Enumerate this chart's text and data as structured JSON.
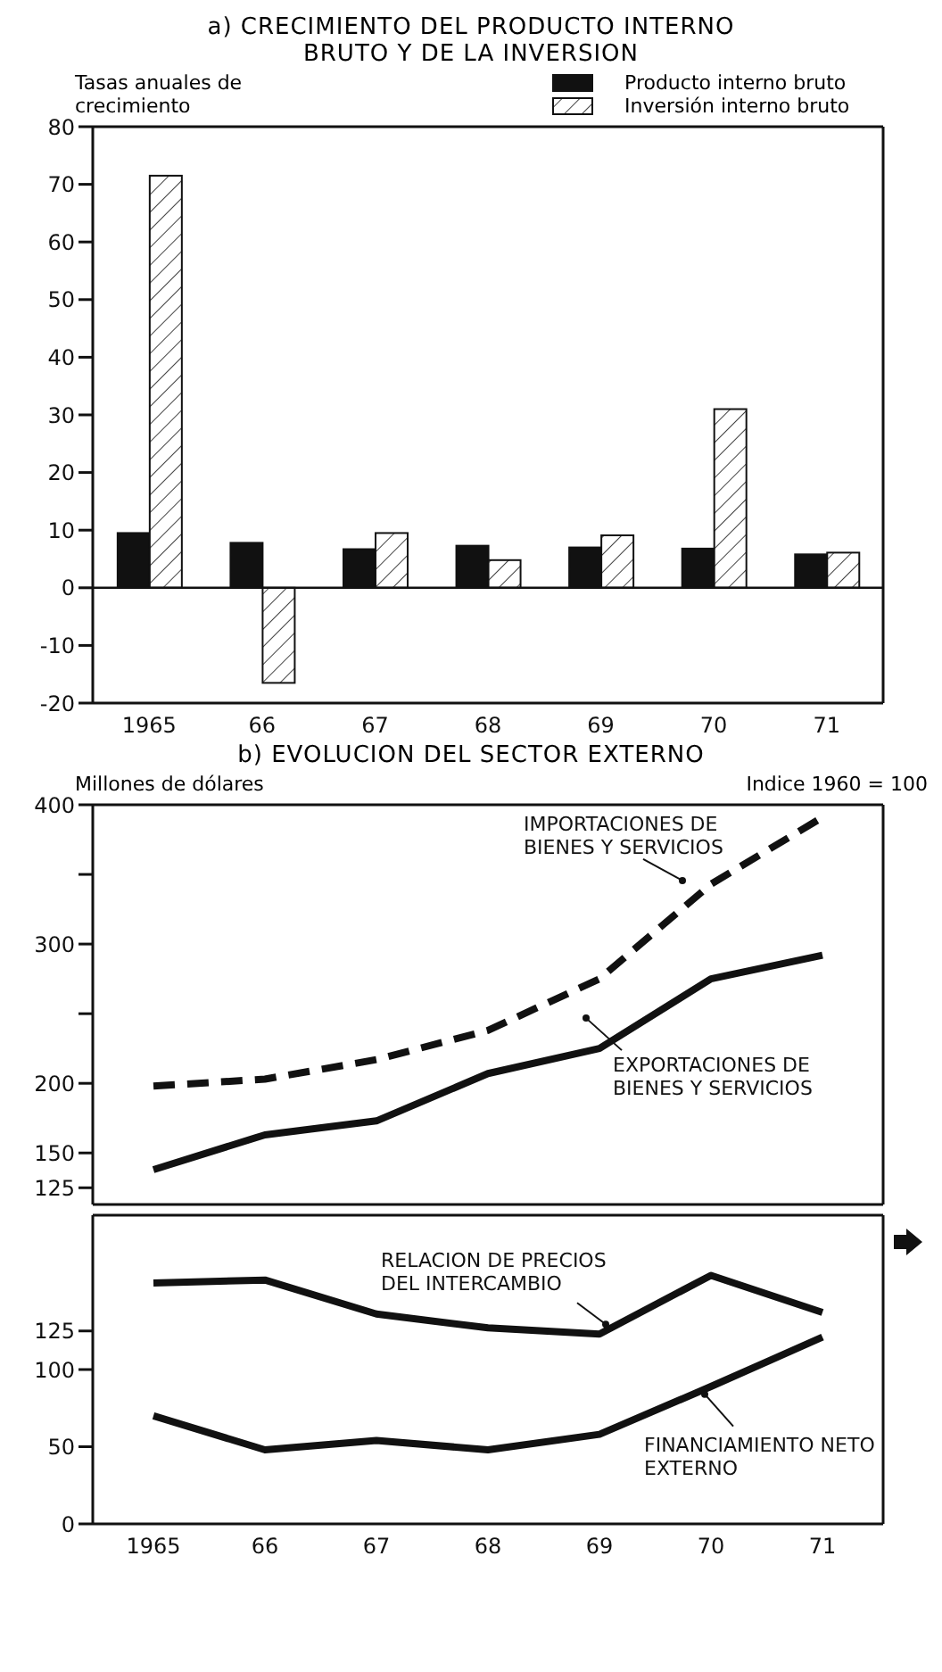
{
  "chart_data": [
    {
      "type": "bar",
      "title": "a) CRECIMIENTO DEL PRODUCTO INTERNO BRUTO Y DE LA INVERSION",
      "ylabel": "Tasas anuales de crecimiento",
      "categories": [
        "1965",
        "66",
        "67",
        "68",
        "69",
        "70",
        "71"
      ],
      "series": [
        {
          "name": "Producto interno bruto",
          "color": "#111111",
          "values": [
            9.5,
            7.8,
            6.7,
            7.3,
            7.0,
            6.8,
            5.8
          ]
        },
        {
          "name": "Inversión interno bruto",
          "color": "#ffffff",
          "values": [
            71.5,
            -16.5,
            9.5,
            4.8,
            9.1,
            31,
            6.1
          ]
        }
      ],
      "ylim": [
        -20,
        80
      ],
      "yticks": [
        -20,
        -10,
        0,
        10,
        20,
        30,
        40,
        50,
        60,
        70,
        80
      ],
      "legend": "top right"
    },
    {
      "type": "line",
      "title": "b) EVOLUCION DEL SECTOR EXTERNO",
      "ylabel": "Millones de dólares",
      "y2label": "Indice 1960 = 100",
      "categories": [
        "1965",
        "66",
        "67",
        "68",
        "69",
        "70",
        "71"
      ],
      "series": [
        {
          "name": "IMPORTACIONES DE BIENES Y SERVICIOS",
          "color": "#111111",
          "line_style": "dashed",
          "values": [
            198,
            203,
            217,
            238,
            275,
            343,
            391
          ]
        },
        {
          "name": "EXPORTACIONES DE BIENES Y SERVICIOS",
          "color": "#111111",
          "values": [
            138,
            163,
            173,
            207,
            225,
            275,
            292
          ]
        }
      ],
      "ylim": [
        113,
        400
      ],
      "yticks": [
        125,
        150,
        200,
        {
          "value": 250,
          "label": null
        },
        300,
        {
          "value": 350,
          "label": null
        },
        400
      ],
      "tick_labels": "y",
      "marker": "none",
      "line_style": "solid"
    },
    {
      "type": "line",
      "categories": [
        "1965",
        "66",
        "67",
        "68",
        "69",
        "70",
        "71"
      ],
      "series": [
        {
          "name": "RELACION DE PRECIOS DEL INTERCAMBIO",
          "color": "#111111",
          "values": [
            156,
            158,
            136,
            127,
            123,
            161,
            137
          ]
        },
        {
          "name": "FINANCIAMIENTO NETO EXTERNO",
          "color": "#111111",
          "values": [
            70,
            48,
            54,
            48,
            58,
            89,
            121
          ]
        }
      ],
      "ylim": [
        0,
        200
      ],
      "yticks": [
        0,
        50,
        100,
        125
      ],
      "marker": "none",
      "line_style": "solid"
    }
  ]
}
